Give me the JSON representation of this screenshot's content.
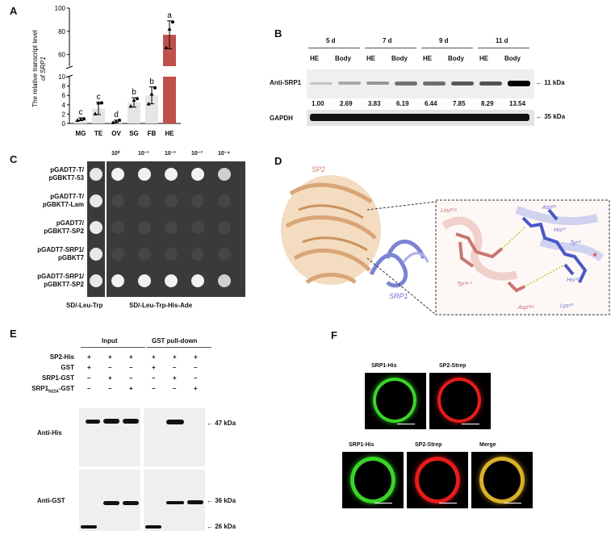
{
  "panel_letters": [
    "A",
    "B",
    "C",
    "D",
    "E",
    "F"
  ],
  "chart_data": {
    "type": "bar",
    "categories": [
      "MG",
      "TE",
      "OV",
      "SG",
      "FB",
      "HE"
    ],
    "values": [
      0.9,
      3.2,
      0.5,
      4.5,
      6.0,
      77
    ],
    "errors": [
      0.3,
      1.3,
      0.2,
      1.0,
      1.8,
      12
    ],
    "points": [
      [
        0.7,
        0.9,
        1.0
      ],
      [
        2.1,
        4.4,
        4.4
      ],
      [
        0.2,
        0.4,
        0.7
      ],
      [
        3.7,
        5.0,
        5.3
      ],
      [
        4.2,
        6.3,
        7.6
      ],
      [
        66,
        82,
        88
      ]
    ],
    "letters": [
      "c",
      "c",
      "d",
      "b",
      "b",
      "a"
    ],
    "colors": [
      "#e6e6e6",
      "#e6e6e6",
      "#e6e6e6",
      "#e6e6e6",
      "#e6e6e6",
      "#c0504d"
    ],
    "ylabel_line1": "The relative transcript level",
    "ylabel_line2": "of SRP1",
    "lower_ticks": [
      "0",
      "2",
      "4",
      "6",
      "8",
      "10"
    ],
    "upper_ticks": [
      "60",
      "80",
      "100"
    ],
    "lower_ylim": [
      0,
      10
    ],
    "upper_ylim": [
      50,
      100
    ],
    "axis_break": true
  },
  "panel_b": {
    "days": [
      "5 d",
      "7 d",
      "9 d",
      "11 d"
    ],
    "tissues": [
      "HE",
      "Body",
      "HE",
      "Body",
      "HE",
      "Body",
      "HE",
      "Body"
    ],
    "row_label_top": "Anti-SRP1",
    "row_label_bottom": "GAPDH",
    "values": [
      "1.00",
      "2.69",
      "3.83",
      "6.19",
      "6.44",
      "7.85",
      "8.29",
      "13.54"
    ],
    "marker_top": "11 kDa",
    "marker_bottom": "35 kDa"
  },
  "panel_c": {
    "rows": [
      [
        "pGADT7-T/",
        "pGBKT7-53"
      ],
      [
        "pGADT7-T/",
        "pGBKT7-Lam"
      ],
      [
        "pGADT7/",
        "pGBKT7-SP2"
      ],
      [
        "pGADT7-SRP1/",
        "pGBKT7"
      ],
      [
        "pGADT7-SRP1/",
        "pGBKT7-SP2"
      ]
    ],
    "dilutions": [
      "10⁰",
      "10⁻¹",
      "10⁻²",
      "10⁻³",
      "10⁻⁴"
    ],
    "growth": [
      [
        1,
        1,
        1,
        1,
        1
      ],
      [
        0,
        0,
        0,
        0,
        0
      ],
      [
        0,
        0,
        0,
        0,
        0
      ],
      [
        0,
        0,
        0,
        0,
        0
      ],
      [
        1,
        1,
        1,
        1,
        1
      ]
    ],
    "media_left": "SD/-Leu-Trp",
    "media_right": "SD/-Leu-Trp-His-Ade"
  },
  "panel_d": {
    "label_sp2": "SP2",
    "label_srp1": "SRP1",
    "residues_pink": [
      "Leu²⁵⁸",
      "Tyr³⁶⁰",
      "Asp³⁶⁵"
    ],
    "residues_blue": [
      "Asn²²",
      "His²⁷",
      "Tyr³⁷",
      "His³³",
      "Lys⁴³"
    ]
  },
  "panel_e": {
    "header_input": "Input",
    "header_pulldown": "GST pull-down",
    "rows": [
      {
        "label": "SP2-His",
        "signs": [
          "+",
          "+",
          "+",
          "+",
          "+",
          "+"
        ]
      },
      {
        "label": "GST",
        "signs": [
          "+",
          "–",
          "–",
          "+",
          "–",
          "–"
        ]
      },
      {
        "label": "SRP1-GST",
        "signs": [
          "–",
          "+",
          "–",
          "–",
          "+",
          "–"
        ]
      },
      {
        "label": "SRP1",
        "sub": "N22A",
        "tail": "-GST",
        "signs": [
          "–",
          "–",
          "+",
          "–",
          "–",
          "+"
        ]
      }
    ],
    "blot_top_label": "Anti-His",
    "blot_bottom_label": "Anti-GST",
    "marker_47": "47 kDa",
    "marker_36": "36 kDa",
    "marker_26": "26 kDa"
  },
  "panel_f": {
    "top_labels": [
      "SRP1-His",
      "SP2-Strep"
    ],
    "bottom_labels": [
      "SRP1-His",
      "SP2-Strep",
      "Merge"
    ],
    "colors": {
      "green": "#39d427",
      "red": "#e51c1c",
      "merge": "#d7b02a"
    }
  }
}
